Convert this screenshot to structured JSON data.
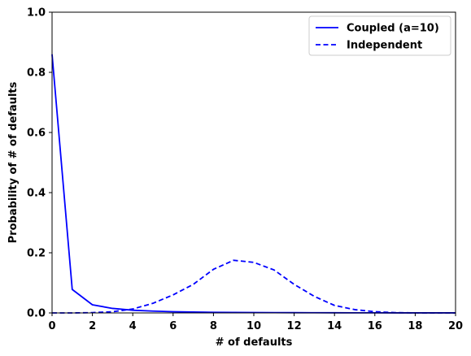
{
  "chart_data": {
    "type": "line",
    "xlabel": "# of defaults",
    "ylabel": "Probability of # of defaults",
    "xlim": [
      0,
      20
    ],
    "ylim": [
      0,
      1.0
    ],
    "xticks": [
      "0",
      "2",
      "4",
      "6",
      "8",
      "10",
      "12",
      "14",
      "16",
      "18",
      "20"
    ],
    "yticks": [
      "0.0",
      "0.2",
      "0.4",
      "0.6",
      "0.8",
      "1.0"
    ],
    "grid": false,
    "legend_position": "top-right",
    "series": [
      {
        "name": "Coupled (a=10)",
        "color": "#0000ff",
        "style": "solid",
        "x": [
          0,
          1,
          2,
          3,
          4,
          5,
          6,
          7,
          8,
          9,
          10,
          11,
          12,
          13,
          14,
          15,
          16,
          17,
          18,
          19,
          20
        ],
        "values": [
          0.86,
          0.078,
          0.027,
          0.015,
          0.009,
          0.006,
          0.004,
          0.003,
          0.002,
          0.0015,
          0.0012,
          0.001,
          0.0008,
          0.0006,
          0.0005,
          0.0004,
          0.0003,
          0.0002,
          0.0002,
          0.0001,
          0.0001
        ]
      },
      {
        "name": "Independent",
        "color": "#0000ff",
        "style": "dashed",
        "x": [
          0,
          1,
          2,
          3,
          4,
          5,
          6,
          7,
          8,
          9,
          10,
          11,
          12,
          13,
          14,
          15,
          16,
          17,
          18,
          19,
          20
        ],
        "values": [
          0.0,
          0.0,
          0.001,
          0.004,
          0.013,
          0.032,
          0.06,
          0.095,
          0.145,
          0.175,
          0.168,
          0.143,
          0.095,
          0.055,
          0.025,
          0.011,
          0.004,
          0.001,
          0.0003,
          0.0001,
          0.0
        ]
      }
    ]
  }
}
